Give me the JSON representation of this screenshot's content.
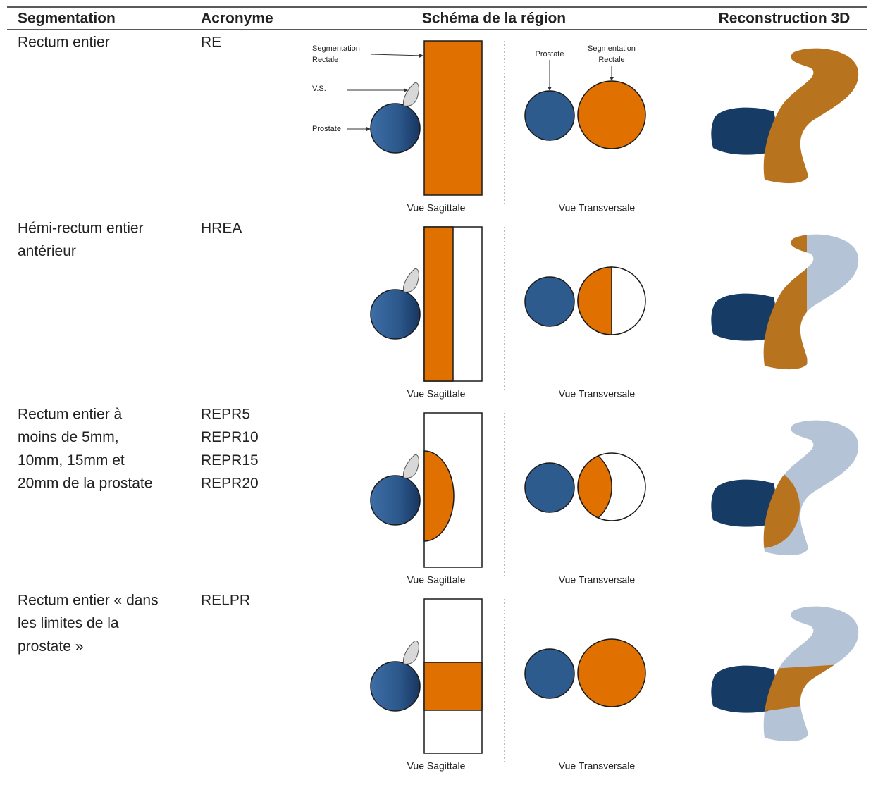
{
  "table": {
    "headers": [
      "Segmentation",
      "Acronyme",
      "Schéma de la région",
      "Reconstruction 3D"
    ],
    "rows": [
      {
        "segmentation": [
          "Rectum entier"
        ],
        "acronyms": [
          "RE"
        ],
        "sagittal_caption": "Vue Sagittale",
        "transversal_caption": "Vue Transversale"
      },
      {
        "segmentation": [
          "Hémi-rectum entier",
          "antérieur"
        ],
        "acronyms": [
          "HREA"
        ],
        "sagittal_caption": "Vue Sagittale",
        "transversal_caption": "Vue Transversale"
      },
      {
        "segmentation": [
          "Rectum entier  à",
          "moins de 5mm,",
          "10mm, 15mm et",
          "20mm de la prostate"
        ],
        "acronyms": [
          "REPR5",
          "REPR10",
          "REPR15",
          "REPR20"
        ],
        "sagittal_caption": "Vue Sagittale",
        "transversal_caption": "Vue Transversale"
      },
      {
        "segmentation": [
          "Rectum entier « dans",
          "les limites de la",
          "prostate »"
        ],
        "acronyms": [
          "RELPR"
        ],
        "sagittal_caption": "Vue Sagittale",
        "transversal_caption": "Vue Transversale"
      }
    ]
  },
  "schema_annotations": {
    "sagittal": {
      "rectal": [
        "Segmentation",
        "Rectale"
      ],
      "vs": "V.S.",
      "prostate": "Prostate"
    },
    "transversal": {
      "prostate": "Prostate",
      "rectal": [
        "Segmentation",
        "Rectale"
      ]
    }
  }
}
